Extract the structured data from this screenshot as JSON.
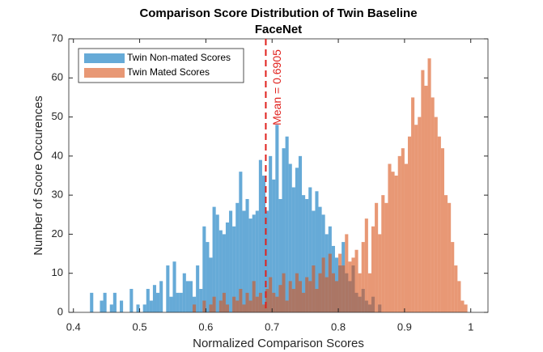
{
  "chart_data": {
    "type": "histogram",
    "title": "Comparison Score Distribution of Twin Baseline",
    "subtitle": "FaceNet",
    "x_label": "Normalized Comparison Scores",
    "y_label": "Number of Score Occurences",
    "bins": [
      0.42,
      0.425,
      0.43,
      0.435,
      0.44,
      0.445,
      0.45,
      0.455,
      0.46,
      0.465,
      0.47,
      0.475,
      0.48,
      0.485,
      0.49,
      0.495,
      0.5,
      0.505,
      0.51,
      0.515,
      0.52,
      0.525,
      0.53,
      0.535,
      0.54,
      0.545,
      0.55,
      0.555,
      0.56,
      0.565,
      0.57,
      0.575,
      0.58,
      0.585,
      0.59,
      0.595,
      0.6,
      0.605,
      0.61,
      0.615,
      0.62,
      0.625,
      0.63,
      0.635,
      0.64,
      0.645,
      0.65,
      0.655,
      0.66,
      0.665,
      0.67,
      0.675,
      0.68,
      0.685,
      0.69,
      0.695,
      0.7,
      0.705,
      0.71,
      0.715,
      0.72,
      0.725,
      0.73,
      0.735,
      0.74,
      0.745,
      0.75,
      0.755,
      0.76,
      0.765,
      0.77,
      0.775,
      0.78,
      0.785,
      0.79,
      0.795,
      0.8,
      0.805,
      0.81,
      0.815,
      0.82,
      0.825,
      0.83,
      0.835,
      0.84,
      0.845,
      0.85,
      0.855,
      0.86,
      0.865,
      0.87,
      0.875,
      0.88,
      0.885,
      0.89,
      0.895,
      0.9,
      0.905,
      0.91,
      0.915,
      0.92,
      0.925,
      0.93,
      0.935,
      0.94,
      0.945,
      0.95,
      0.955,
      0.96,
      0.965,
      0.97,
      0.975,
      0.98,
      0.985,
      0.99,
      0.995,
      1.0
    ],
    "series": [
      {
        "name": "Twin Non-mated Scores",
        "color": "#0072bd",
        "values": [
          0,
          5,
          0,
          0,
          3,
          5,
          0,
          2,
          5,
          0,
          3,
          0,
          0,
          6,
          0,
          2,
          0,
          2,
          6,
          3,
          7,
          5,
          8,
          0,
          12,
          4,
          13,
          5,
          5,
          10,
          8,
          8,
          4,
          12,
          6,
          22,
          18,
          14,
          27,
          25,
          21,
          20,
          23,
          26,
          22,
          28,
          36,
          26,
          29,
          24,
          25,
          26,
          39,
          35,
          26,
          40,
          34,
          48,
          29,
          42,
          45,
          38,
          32,
          37,
          40,
          30,
          29,
          32,
          26,
          31,
          27,
          25,
          20,
          22,
          17,
          14,
          12,
          18,
          10,
          8,
          12,
          5,
          4,
          6,
          3,
          2,
          4,
          0,
          2,
          0,
          0,
          0,
          0,
          0,
          0,
          0,
          0,
          0,
          0,
          0,
          0,
          0,
          0,
          0,
          0,
          0,
          0,
          0,
          0,
          0,
          0,
          0,
          0,
          0,
          0,
          0
        ]
      },
      {
        "name": "Twin Mated Scores",
        "color": "#d95319",
        "values": [
          0,
          0,
          0,
          0,
          0,
          0,
          0,
          0,
          0,
          0,
          0,
          0,
          0,
          0,
          0,
          0,
          0,
          0,
          0,
          0,
          0,
          0,
          0,
          0,
          0,
          0,
          0,
          0,
          0,
          0,
          0,
          0,
          2,
          0,
          0,
          3,
          0,
          2,
          4,
          0,
          3,
          5,
          2,
          0,
          4,
          3,
          6,
          2,
          5,
          3,
          8,
          4,
          5,
          2,
          6,
          9,
          5,
          4,
          7,
          10,
          3,
          8,
          6,
          10,
          8,
          5,
          9,
          8,
          12,
          6,
          10,
          14,
          9,
          15,
          10,
          8,
          15,
          12,
          20,
          13,
          14,
          16,
          10,
          18,
          24,
          10,
          22,
          28,
          20,
          30,
          28,
          38,
          36,
          35,
          40,
          42,
          38,
          45,
          55,
          48,
          50,
          62,
          58,
          65,
          55,
          50,
          45,
          42,
          30,
          28,
          18,
          12,
          8,
          3,
          2,
          0
        ]
      }
    ],
    "annotations": [
      {
        "text": "Mean = 0.6905",
        "x": 0.6905,
        "color": "#e0201c"
      }
    ],
    "xlim": [
      0.393,
      1.026
    ],
    "ylim": [
      0,
      70
    ],
    "xticks": [
      0.4,
      0.5,
      0.6,
      0.7,
      0.8,
      0.9,
      1
    ],
    "yticks": [
      0,
      10,
      20,
      30,
      40,
      50,
      60,
      70
    ],
    "legend": "top-left",
    "grid": false
  }
}
